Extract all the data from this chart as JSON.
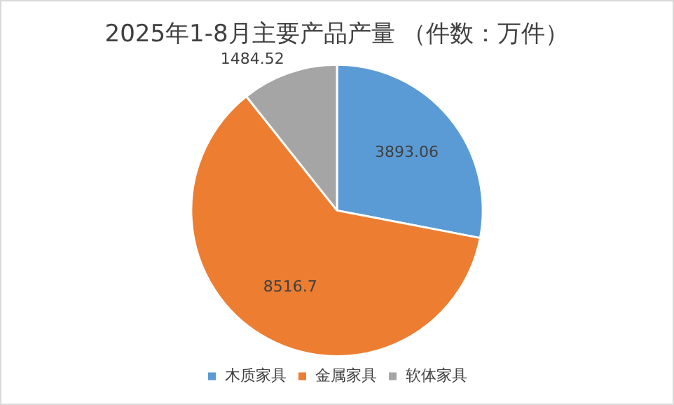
{
  "chart_data": {
    "type": "pie",
    "title": "2025年1-8月主要产品产量 （件数：万件）",
    "categories": [
      "木质家具",
      "金属家具",
      "软体家具"
    ],
    "values": [
      3893.06,
      8516.7,
      1484.52
    ],
    "colors": [
      "#5b9bd5",
      "#ed7d31",
      "#a5a5a5"
    ],
    "data_labels": true,
    "legend": "bottom"
  }
}
